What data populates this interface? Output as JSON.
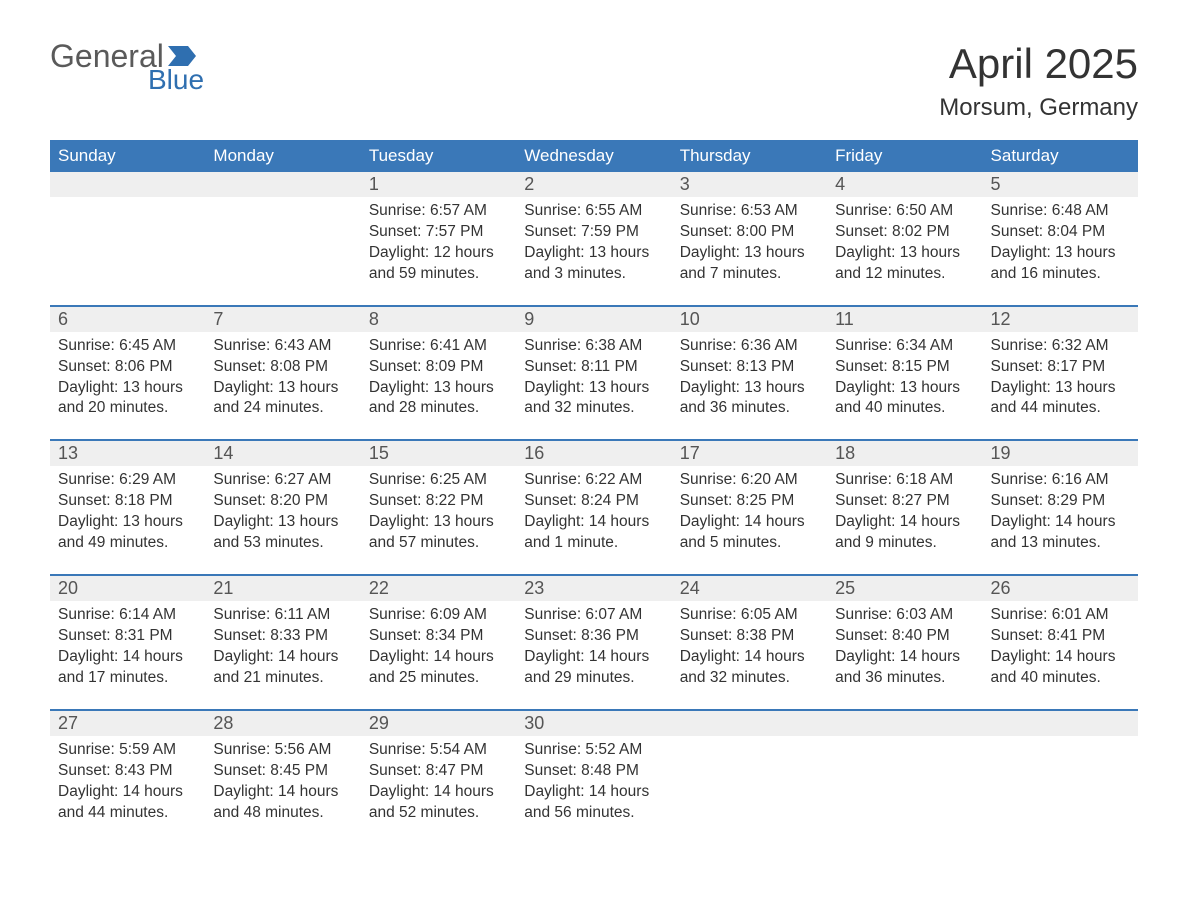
{
  "logo": {
    "word1": "General",
    "word2": "Blue",
    "color_general": "#5a5a5a",
    "color_blue": "#2f6fb0",
    "flag_color": "#2f6fb0"
  },
  "title": "April 2025",
  "location": "Morsum, Germany",
  "colors": {
    "header_bg": "#3a78b8",
    "header_text": "#ffffff",
    "daynum_bg": "#efefef",
    "row_border": "#3a78b8",
    "text": "#333333",
    "page_bg": "#ffffff"
  },
  "weekdays": [
    "Sunday",
    "Monday",
    "Tuesday",
    "Wednesday",
    "Thursday",
    "Friday",
    "Saturday"
  ],
  "field_labels": {
    "sunrise": "Sunrise",
    "sunset": "Sunset",
    "daylight": "Daylight"
  },
  "weeks": [
    [
      null,
      null,
      {
        "n": "1",
        "sr": "6:57 AM",
        "ss": "7:57 PM",
        "dl": "12 hours and 59 minutes."
      },
      {
        "n": "2",
        "sr": "6:55 AM",
        "ss": "7:59 PM",
        "dl": "13 hours and 3 minutes."
      },
      {
        "n": "3",
        "sr": "6:53 AM",
        "ss": "8:00 PM",
        "dl": "13 hours and 7 minutes."
      },
      {
        "n": "4",
        "sr": "6:50 AM",
        "ss": "8:02 PM",
        "dl": "13 hours and 12 minutes."
      },
      {
        "n": "5",
        "sr": "6:48 AM",
        "ss": "8:04 PM",
        "dl": "13 hours and 16 minutes."
      }
    ],
    [
      {
        "n": "6",
        "sr": "6:45 AM",
        "ss": "8:06 PM",
        "dl": "13 hours and 20 minutes."
      },
      {
        "n": "7",
        "sr": "6:43 AM",
        "ss": "8:08 PM",
        "dl": "13 hours and 24 minutes."
      },
      {
        "n": "8",
        "sr": "6:41 AM",
        "ss": "8:09 PM",
        "dl": "13 hours and 28 minutes."
      },
      {
        "n": "9",
        "sr": "6:38 AM",
        "ss": "8:11 PM",
        "dl": "13 hours and 32 minutes."
      },
      {
        "n": "10",
        "sr": "6:36 AM",
        "ss": "8:13 PM",
        "dl": "13 hours and 36 minutes."
      },
      {
        "n": "11",
        "sr": "6:34 AM",
        "ss": "8:15 PM",
        "dl": "13 hours and 40 minutes."
      },
      {
        "n": "12",
        "sr": "6:32 AM",
        "ss": "8:17 PM",
        "dl": "13 hours and 44 minutes."
      }
    ],
    [
      {
        "n": "13",
        "sr": "6:29 AM",
        "ss": "8:18 PM",
        "dl": "13 hours and 49 minutes."
      },
      {
        "n": "14",
        "sr": "6:27 AM",
        "ss": "8:20 PM",
        "dl": "13 hours and 53 minutes."
      },
      {
        "n": "15",
        "sr": "6:25 AM",
        "ss": "8:22 PM",
        "dl": "13 hours and 57 minutes."
      },
      {
        "n": "16",
        "sr": "6:22 AM",
        "ss": "8:24 PM",
        "dl": "14 hours and 1 minute."
      },
      {
        "n": "17",
        "sr": "6:20 AM",
        "ss": "8:25 PM",
        "dl": "14 hours and 5 minutes."
      },
      {
        "n": "18",
        "sr": "6:18 AM",
        "ss": "8:27 PM",
        "dl": "14 hours and 9 minutes."
      },
      {
        "n": "19",
        "sr": "6:16 AM",
        "ss": "8:29 PM",
        "dl": "14 hours and 13 minutes."
      }
    ],
    [
      {
        "n": "20",
        "sr": "6:14 AM",
        "ss": "8:31 PM",
        "dl": "14 hours and 17 minutes."
      },
      {
        "n": "21",
        "sr": "6:11 AM",
        "ss": "8:33 PM",
        "dl": "14 hours and 21 minutes."
      },
      {
        "n": "22",
        "sr": "6:09 AM",
        "ss": "8:34 PM",
        "dl": "14 hours and 25 minutes."
      },
      {
        "n": "23",
        "sr": "6:07 AM",
        "ss": "8:36 PM",
        "dl": "14 hours and 29 minutes."
      },
      {
        "n": "24",
        "sr": "6:05 AM",
        "ss": "8:38 PM",
        "dl": "14 hours and 32 minutes."
      },
      {
        "n": "25",
        "sr": "6:03 AM",
        "ss": "8:40 PM",
        "dl": "14 hours and 36 minutes."
      },
      {
        "n": "26",
        "sr": "6:01 AM",
        "ss": "8:41 PM",
        "dl": "14 hours and 40 minutes."
      }
    ],
    [
      {
        "n": "27",
        "sr": "5:59 AM",
        "ss": "8:43 PM",
        "dl": "14 hours and 44 minutes."
      },
      {
        "n": "28",
        "sr": "5:56 AM",
        "ss": "8:45 PM",
        "dl": "14 hours and 48 minutes."
      },
      {
        "n": "29",
        "sr": "5:54 AM",
        "ss": "8:47 PM",
        "dl": "14 hours and 52 minutes."
      },
      {
        "n": "30",
        "sr": "5:52 AM",
        "ss": "8:48 PM",
        "dl": "14 hours and 56 minutes."
      },
      null,
      null,
      null
    ]
  ]
}
